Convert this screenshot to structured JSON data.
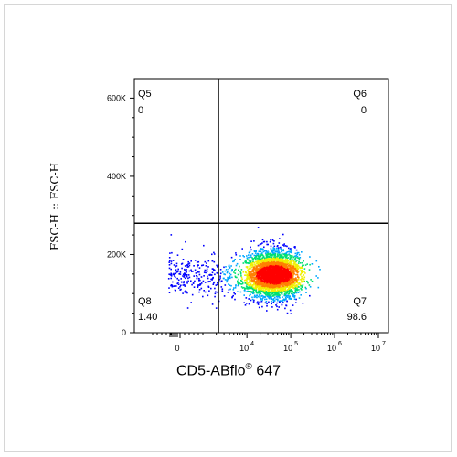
{
  "chart_data": {
    "type": "scatter",
    "subtype": "flow-cytometry-density-dot-plot",
    "xlabel": {
      "text": "CD5-ABflo",
      "superscript": "®",
      "suffix": " 647"
    },
    "ylabel": "FSC-H :: FSC-H",
    "y_axis": {
      "scale": "linear",
      "ylim": [
        0,
        650000
      ],
      "ticks": [
        0,
        200000,
        400000,
        600000
      ],
      "tick_labels": [
        "0",
        "200K",
        "400K",
        "600K"
      ]
    },
    "x_axis": {
      "scale": "biexponential",
      "ticks": [
        0,
        10000,
        100000,
        1000000,
        10000000
      ],
      "tick_labels": [
        "0",
        "10",
        "10",
        "10",
        "10"
      ],
      "tick_exponents": [
        "",
        "4",
        "5",
        "6",
        "7"
      ]
    },
    "gates": {
      "x_threshold_decade": 3.35,
      "y_threshold": 280000
    },
    "quadrants": [
      {
        "name": "Q5",
        "percent": "0",
        "position": "top-left"
      },
      {
        "name": "Q6",
        "percent": "0",
        "position": "top-right"
      },
      {
        "name": "Q8",
        "percent": "1.40",
        "position": "bottom-left"
      },
      {
        "name": "Q7",
        "percent": "98.6",
        "position": "bottom-right"
      }
    ],
    "population": {
      "center_decade": 4.6,
      "center_y": 150000,
      "events": 4000
    },
    "colors": {
      "density": [
        "#0000ff",
        "#00a8ff",
        "#00e070",
        "#f0f000",
        "#ff8000",
        "#ff0000"
      ],
      "gate_line": "#000000",
      "axis": "#000000"
    },
    "grid": false,
    "legend": "none"
  }
}
